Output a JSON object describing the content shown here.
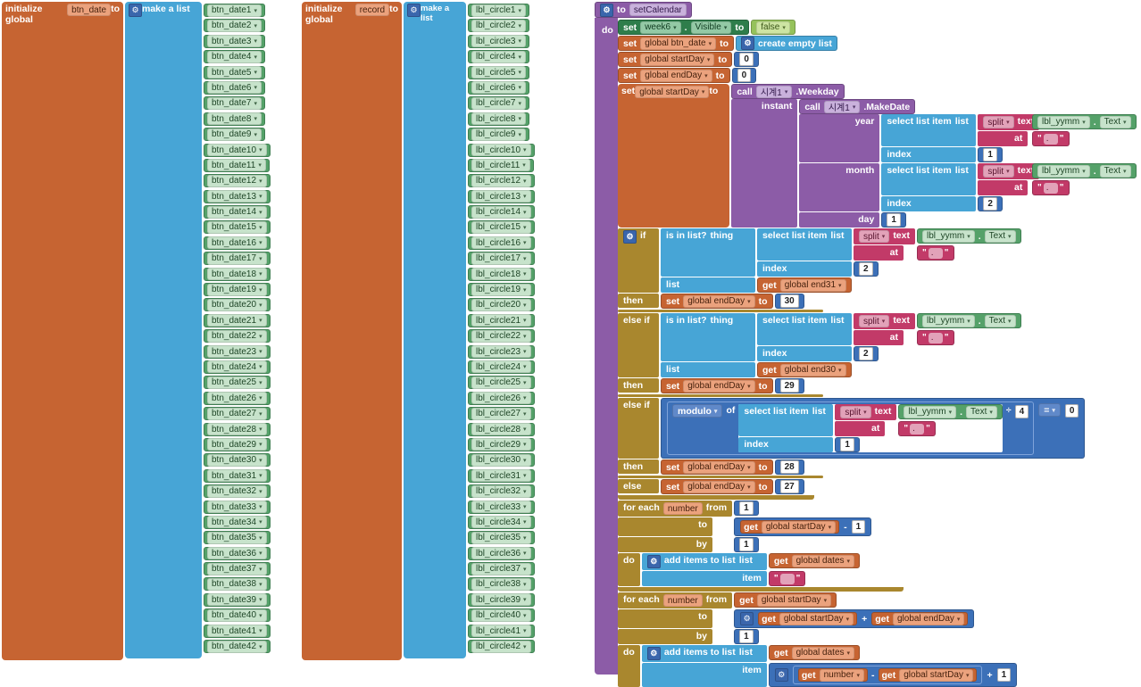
{
  "icons": {
    "gear": "⚙"
  },
  "kw": {
    "init": "initialize global",
    "to": "to",
    "set": "set",
    "do": "do",
    "get": "get",
    "call": "call",
    "makeList": "make a list",
    "emptyList": "create empty list",
    "addItems": "add items to list",
    "select": "select list item",
    "isin": "is in list?",
    "thing": "thing",
    "if": "if",
    "then": "then",
    "elseif": "else if",
    "else": "else",
    "forEach": "for each",
    "from": "from",
    "by": "by",
    "list": "list",
    "item": "item",
    "index": "index",
    "at": "at",
    "text": "text",
    "of": "of",
    "instant": "instant",
    "year": "year",
    "month": "month",
    "day": "day",
    "dot": ".",
    "quote": "\"",
    "split": "split"
  },
  "ops": {
    "minus": "-",
    "plus": "+",
    "div": "÷",
    "eq": "=",
    "modulo": "modulo"
  },
  "init1": {
    "name": "btn_date",
    "items": [
      "btn_date1",
      "btn_date2",
      "btn_date3",
      "btn_date4",
      "btn_date5",
      "btn_date6",
      "btn_date7",
      "btn_date8",
      "btn_date9",
      "btn_date10",
      "btn_date11",
      "btn_date12",
      "btn_date13",
      "btn_date14",
      "btn_date15",
      "btn_date16",
      "btn_date17",
      "btn_date18",
      "btn_date19",
      "btn_date20",
      "btn_date21",
      "btn_date22",
      "btn_date23",
      "btn_date24",
      "btn_date25",
      "btn_date26",
      "btn_date27",
      "btn_date28",
      "btn_date29",
      "btn_date30",
      "btn_date31",
      "btn_date32",
      "btn_date33",
      "btn_date34",
      "btn_date35",
      "btn_date36",
      "btn_date37",
      "btn_date38",
      "btn_date39",
      "btn_date40",
      "btn_date41",
      "btn_date42"
    ]
  },
  "init2": {
    "name": "record",
    "items": [
      "lbl_circle1",
      "lbl_circle2",
      "lbl_circle3",
      "lbl_circle4",
      "lbl_circle5",
      "lbl_circle6",
      "lbl_circle7",
      "lbl_circle8",
      "lbl_circle9",
      "lbl_circle10",
      "lbl_circle11",
      "lbl_circle12",
      "lbl_circle13",
      "lbl_circle14",
      "lbl_circle15",
      "lbl_circle16",
      "lbl_circle17",
      "lbl_circle18",
      "lbl_circle19",
      "lbl_circle20",
      "lbl_circle21",
      "lbl_circle22",
      "lbl_circle23",
      "lbl_circle24",
      "lbl_circle25",
      "lbl_circle26",
      "lbl_circle27",
      "lbl_circle28",
      "lbl_circle29",
      "lbl_circle30",
      "lbl_circle31",
      "lbl_circle32",
      "lbl_circle33",
      "lbl_circle34",
      "lbl_circle35",
      "lbl_circle36",
      "lbl_circle37",
      "lbl_circle38",
      "lbl_circle39",
      "lbl_circle40",
      "lbl_circle41",
      "lbl_circle42"
    ]
  },
  "proc": {
    "name": "setCalendar",
    "set_week6": {
      "comp": "week6",
      "prop": "Visible",
      "val": "false"
    },
    "set_btn_date": {
      "name": "global btn_date"
    },
    "set_startday0": {
      "name": "global startDay",
      "val": "0"
    },
    "set_endday0": {
      "name": "global endDay",
      "val": "0"
    },
    "set_startday": {
      "name": "global startDay"
    },
    "weekday": {
      "comp": "시계1",
      "method": ".Weekday"
    },
    "makedate": {
      "comp": "시계1",
      "method": ".MakeDate",
      "year_index": "1",
      "month_index": "2",
      "day_val": "1"
    },
    "yymm": {
      "comp": "lbl_yymm",
      "prop": "Text"
    },
    "sep": ".",
    "ifblk": {
      "endday": "global endDay",
      "end31": "global end31",
      "idx1": "2",
      "v1": "30",
      "end30": "global end30",
      "idx2": "2",
      "v2": "29",
      "idx3": "1",
      "div": "4",
      "zero": "0",
      "v3": "28",
      "v4": "27"
    },
    "f1": {
      "param": "number",
      "from": "1",
      "to_var": "global startDay",
      "to_num": "1",
      "by": "1",
      "dates": "global dates",
      "item": ""
    },
    "f2": {
      "param": "number",
      "from_var": "global startDay",
      "to_a": "global startDay",
      "to_b": "global endDay",
      "by": "1",
      "dates": "global dates",
      "item_a": "number",
      "item_b": "global startDay",
      "item_c": "1"
    }
  }
}
